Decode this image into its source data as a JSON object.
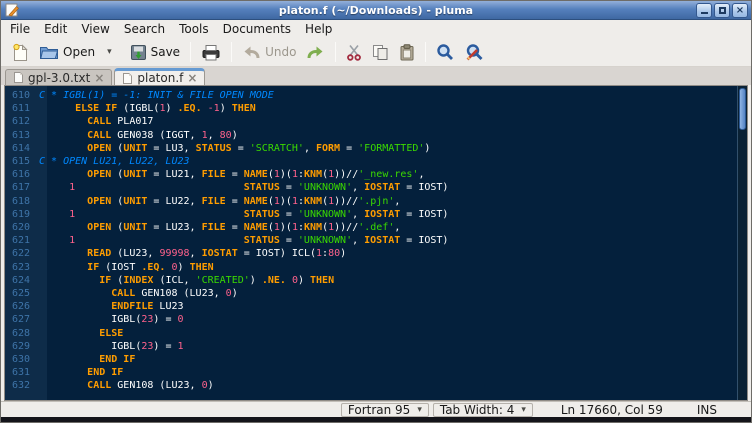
{
  "window": {
    "title": "platon.f (~/Downloads) - pluma"
  },
  "menubar": {
    "items": [
      "File",
      "Edit",
      "View",
      "Search",
      "Tools",
      "Documents",
      "Help"
    ]
  },
  "toolbar": {
    "open_label": "Open",
    "save_label": "Save",
    "undo_label": "Undo"
  },
  "tabs": [
    {
      "label": "gpl-3.0.txt"
    },
    {
      "label": "platon.f"
    }
  ],
  "editor": {
    "lines": [
      {
        "n": 610,
        "seg": [
          [
            "c",
            "C * IGBL(1) = -1: INIT & FILE OPEN MODE"
          ]
        ]
      },
      {
        "n": 611,
        "seg": [
          [
            "p",
            "      "
          ],
          [
            "k",
            "ELSE IF"
          ],
          [
            "p",
            " (IGBL("
          ],
          [
            "n",
            "1"
          ],
          [
            "p",
            ") "
          ],
          [
            "k",
            ".EQ."
          ],
          [
            "p",
            " "
          ],
          [
            "n",
            "-1"
          ],
          [
            "p",
            ") "
          ],
          [
            "k",
            "THEN"
          ]
        ]
      },
      {
        "n": 612,
        "seg": [
          [
            "p",
            "        "
          ],
          [
            "k",
            "CALL"
          ],
          [
            "p",
            " PLA017"
          ]
        ]
      },
      {
        "n": 613,
        "seg": [
          [
            "p",
            "        "
          ],
          [
            "k",
            "CALL"
          ],
          [
            "p",
            " GEN038 (IGGT, "
          ],
          [
            "n",
            "1"
          ],
          [
            "p",
            ", "
          ],
          [
            "n",
            "80"
          ],
          [
            "p",
            ")"
          ]
        ]
      },
      {
        "n": 614,
        "seg": [
          [
            "p",
            "        "
          ],
          [
            "k",
            "OPEN"
          ],
          [
            "p",
            " ("
          ],
          [
            "k",
            "UNIT"
          ],
          [
            "p",
            " = LU3, "
          ],
          [
            "k",
            "STATUS"
          ],
          [
            "p",
            " = "
          ],
          [
            "s",
            "'SCRATCH'"
          ],
          [
            "p",
            ", "
          ],
          [
            "k",
            "FORM"
          ],
          [
            "p",
            " = "
          ],
          [
            "s",
            "'FORMATTED'"
          ],
          [
            "p",
            ")"
          ]
        ]
      },
      {
        "n": 615,
        "seg": [
          [
            "c",
            "C * OPEN LU21, LU22, LU23"
          ]
        ]
      },
      {
        "n": 616,
        "seg": [
          [
            "p",
            "        "
          ],
          [
            "k",
            "OPEN"
          ],
          [
            "p",
            " ("
          ],
          [
            "k",
            "UNIT"
          ],
          [
            "p",
            " = LU21, "
          ],
          [
            "k",
            "FILE"
          ],
          [
            "p",
            " = "
          ],
          [
            "k",
            "NAME"
          ],
          [
            "p",
            "("
          ],
          [
            "n",
            "1"
          ],
          [
            "p",
            ")("
          ],
          [
            "n",
            "1"
          ],
          [
            "p",
            ":"
          ],
          [
            "k",
            "KNM"
          ],
          [
            "p",
            "("
          ],
          [
            "n",
            "1"
          ],
          [
            "p",
            "))//"
          ],
          [
            "s",
            "'_new.res'"
          ],
          [
            "p",
            ","
          ]
        ]
      },
      {
        "n": 617,
        "seg": [
          [
            "p",
            "     "
          ],
          [
            "n",
            "1"
          ],
          [
            "p",
            "                            "
          ],
          [
            "k",
            "STATUS"
          ],
          [
            "p",
            " = "
          ],
          [
            "s",
            "'UNKNOWN'"
          ],
          [
            "p",
            ", "
          ],
          [
            "k",
            "IOSTAT"
          ],
          [
            "p",
            " = IOST)"
          ]
        ]
      },
      {
        "n": 618,
        "seg": [
          [
            "p",
            "        "
          ],
          [
            "k",
            "OPEN"
          ],
          [
            "p",
            " ("
          ],
          [
            "k",
            "UNIT"
          ],
          [
            "p",
            " = LU22, "
          ],
          [
            "k",
            "FILE"
          ],
          [
            "p",
            " = "
          ],
          [
            "k",
            "NAME"
          ],
          [
            "p",
            "("
          ],
          [
            "n",
            "1"
          ],
          [
            "p",
            ")("
          ],
          [
            "n",
            "1"
          ],
          [
            "p",
            ":"
          ],
          [
            "k",
            "KNM"
          ],
          [
            "p",
            "("
          ],
          [
            "n",
            "1"
          ],
          [
            "p",
            "))//"
          ],
          [
            "s",
            "'.pjn'"
          ],
          [
            "p",
            ","
          ]
        ]
      },
      {
        "n": 619,
        "seg": [
          [
            "p",
            "     "
          ],
          [
            "n",
            "1"
          ],
          [
            "p",
            "                            "
          ],
          [
            "k",
            "STATUS"
          ],
          [
            "p",
            " = "
          ],
          [
            "s",
            "'UNKNOWN'"
          ],
          [
            "p",
            ", "
          ],
          [
            "k",
            "IOSTAT"
          ],
          [
            "p",
            " = IOST)"
          ]
        ]
      },
      {
        "n": 620,
        "seg": [
          [
            "p",
            "        "
          ],
          [
            "k",
            "OPEN"
          ],
          [
            "p",
            " ("
          ],
          [
            "k",
            "UNIT"
          ],
          [
            "p",
            " = LU23, "
          ],
          [
            "k",
            "FILE"
          ],
          [
            "p",
            " = "
          ],
          [
            "k",
            "NAME"
          ],
          [
            "p",
            "("
          ],
          [
            "n",
            "1"
          ],
          [
            "p",
            ")("
          ],
          [
            "n",
            "1"
          ],
          [
            "p",
            ":"
          ],
          [
            "k",
            "KNM"
          ],
          [
            "p",
            "("
          ],
          [
            "n",
            "1"
          ],
          [
            "p",
            "))//"
          ],
          [
            "s",
            "'.def'"
          ],
          [
            "p",
            ","
          ]
        ]
      },
      {
        "n": 621,
        "seg": [
          [
            "p",
            "     "
          ],
          [
            "n",
            "1"
          ],
          [
            "p",
            "                            "
          ],
          [
            "k",
            "STATUS"
          ],
          [
            "p",
            " = "
          ],
          [
            "s",
            "'UNKNOWN'"
          ],
          [
            "p",
            ", "
          ],
          [
            "k",
            "IOSTAT"
          ],
          [
            "p",
            " = IOST)"
          ]
        ]
      },
      {
        "n": 622,
        "seg": [
          [
            "p",
            "        "
          ],
          [
            "k",
            "READ"
          ],
          [
            "p",
            " (LU23, "
          ],
          [
            "n",
            "99998"
          ],
          [
            "p",
            ", "
          ],
          [
            "k",
            "IOSTAT"
          ],
          [
            "p",
            " = IOST) ICL("
          ],
          [
            "n",
            "1"
          ],
          [
            "p",
            ":"
          ],
          [
            "n",
            "80"
          ],
          [
            "p",
            ")"
          ]
        ]
      },
      {
        "n": 623,
        "seg": [
          [
            "p",
            "        "
          ],
          [
            "k",
            "IF"
          ],
          [
            "p",
            " (IOST "
          ],
          [
            "k",
            ".EQ."
          ],
          [
            "p",
            " "
          ],
          [
            "n",
            "0"
          ],
          [
            "p",
            ") "
          ],
          [
            "k",
            "THEN"
          ]
        ]
      },
      {
        "n": 624,
        "seg": [
          [
            "p",
            "          "
          ],
          [
            "k",
            "IF"
          ],
          [
            "p",
            " ("
          ],
          [
            "k",
            "INDEX"
          ],
          [
            "p",
            " (ICL, "
          ],
          [
            "s",
            "'CREATED'"
          ],
          [
            "p",
            ") "
          ],
          [
            "k",
            ".NE."
          ],
          [
            "p",
            " "
          ],
          [
            "n",
            "0"
          ],
          [
            "p",
            ") "
          ],
          [
            "k",
            "THEN"
          ]
        ]
      },
      {
        "n": 625,
        "seg": [
          [
            "p",
            "            "
          ],
          [
            "k",
            "CALL"
          ],
          [
            "p",
            " GEN108 (LU23, "
          ],
          [
            "n",
            "0"
          ],
          [
            "p",
            ")"
          ]
        ]
      },
      {
        "n": 626,
        "seg": [
          [
            "p",
            "            "
          ],
          [
            "k",
            "ENDFILE"
          ],
          [
            "p",
            " LU23"
          ]
        ]
      },
      {
        "n": 627,
        "seg": [
          [
            "p",
            "            IGBL("
          ],
          [
            "n",
            "23"
          ],
          [
            "p",
            ") = "
          ],
          [
            "n",
            "0"
          ]
        ]
      },
      {
        "n": 628,
        "seg": [
          [
            "p",
            "          "
          ],
          [
            "k",
            "ELSE"
          ]
        ]
      },
      {
        "n": 629,
        "seg": [
          [
            "p",
            "            IGBL("
          ],
          [
            "n",
            "23"
          ],
          [
            "p",
            ") = "
          ],
          [
            "n",
            "1"
          ]
        ]
      },
      {
        "n": 630,
        "seg": [
          [
            "p",
            "          "
          ],
          [
            "k",
            "END IF"
          ]
        ]
      },
      {
        "n": 631,
        "seg": [
          [
            "p",
            "        "
          ],
          [
            "k",
            "END IF"
          ]
        ]
      },
      {
        "n": 632,
        "seg": [
          [
            "p",
            "        "
          ],
          [
            "k",
            "CALL"
          ],
          [
            "p",
            " GEN108 (LU23, "
          ],
          [
            "n",
            "0"
          ],
          [
            "p",
            ")"
          ]
        ]
      }
    ]
  },
  "statusbar": {
    "language": "Fortran 95",
    "tab_width": "Tab Width: 4",
    "position": "Ln 17660, Col 59",
    "mode": "INS"
  },
  "colors": {
    "editor_bg": "#04203c",
    "gutter_bg": "#0e2c49",
    "keyword": "#ff9d00",
    "string": "#3ad900",
    "number": "#ff628c",
    "comment": "#0088ff",
    "titlebar": "#5580bd"
  }
}
